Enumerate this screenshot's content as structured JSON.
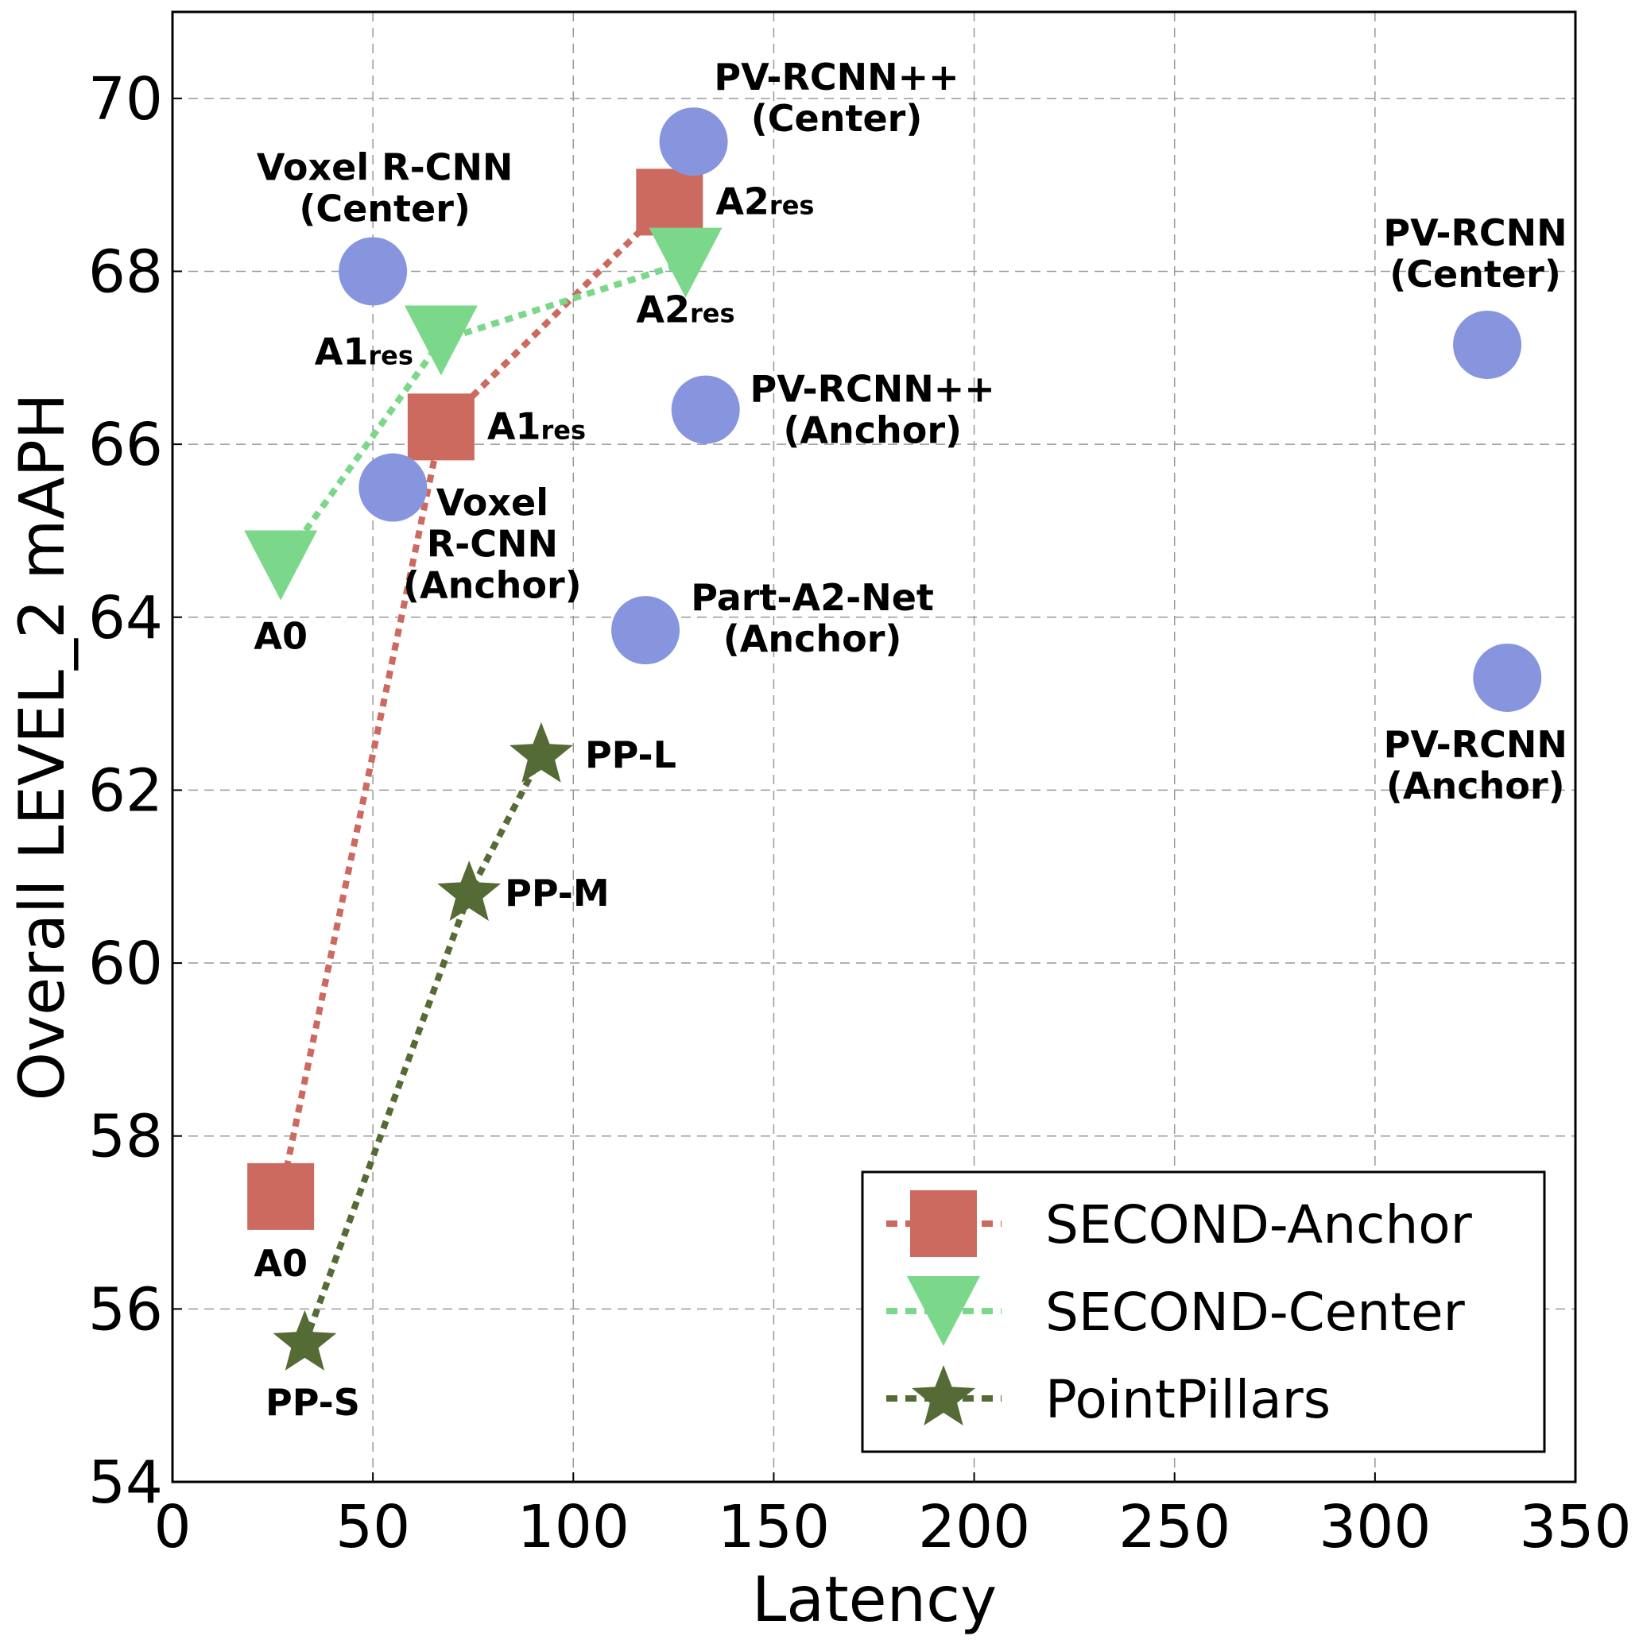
{
  "chart_data": {
    "type": "scatter",
    "title": "",
    "xlabel": "Latency",
    "ylabel": "Overall LEVEL_2 mAPH",
    "xlim": [
      0,
      350
    ],
    "ylim": [
      54,
      71
    ],
    "x_ticks": [
      0,
      50,
      100,
      150,
      200,
      250,
      300,
      350
    ],
    "y_ticks": [
      54,
      56,
      58,
      60,
      62,
      64,
      66,
      68,
      70
    ],
    "grid": true,
    "legend_position": "bottom-right",
    "series": [
      {
        "name": "SECOND-Anchor",
        "marker": "square",
        "color": "#cd6a5f",
        "line": "dotted",
        "points": [
          {
            "x": 27,
            "y": 57.3,
            "label": "A0",
            "label_sub": ""
          },
          {
            "x": 67,
            "y": 66.2,
            "label": "A1",
            "label_sub": "res"
          },
          {
            "x": 124,
            "y": 68.8,
            "label": "A2",
            "label_sub": "res"
          }
        ]
      },
      {
        "name": "SECOND-Center",
        "marker": "triangle-down",
        "color": "#7bd88a",
        "line": "dotted",
        "points": [
          {
            "x": 27,
            "y": 64.6,
            "label": "A0",
            "label_sub": ""
          },
          {
            "x": 67,
            "y": 67.2,
            "label": "A1",
            "label_sub": "res"
          },
          {
            "x": 128,
            "y": 68.1,
            "label": "A2",
            "label_sub": "res"
          }
        ]
      },
      {
        "name": "PointPillars",
        "marker": "star",
        "color": "#556b35",
        "line": "dotted",
        "points": [
          {
            "x": 33,
            "y": 55.6,
            "label": "PP-S",
            "label_sub": ""
          },
          {
            "x": 74,
            "y": 60.8,
            "label": "PP-M",
            "label_sub": ""
          },
          {
            "x": 92,
            "y": 62.4,
            "label": "PP-L",
            "label_sub": ""
          }
        ]
      },
      {
        "name": "",
        "marker": "circle",
        "color": "#8695de",
        "line": "none",
        "points": [
          {
            "x": 50,
            "y": 68.0,
            "label": [
              "Voxel R-CNN",
              "(Center)"
            ]
          },
          {
            "x": 55,
            "y": 65.5,
            "label": [
              "Voxel",
              "R-CNN",
              "(Anchor)"
            ]
          },
          {
            "x": 130,
            "y": 69.5,
            "label": [
              "PV-RCNN++",
              "(Center)"
            ]
          },
          {
            "x": 133,
            "y": 66.4,
            "label": [
              "PV-RCNN++",
              "(Anchor)"
            ]
          },
          {
            "x": 118,
            "y": 63.85,
            "label": [
              "Part-A2-Net",
              "(Anchor)"
            ]
          },
          {
            "x": 328,
            "y": 67.15,
            "label": [
              "PV-RCNN",
              "(Center)"
            ]
          },
          {
            "x": 333,
            "y": 63.3,
            "label": [
              "PV-RCNN",
              "(Anchor)"
            ]
          }
        ]
      }
    ]
  }
}
